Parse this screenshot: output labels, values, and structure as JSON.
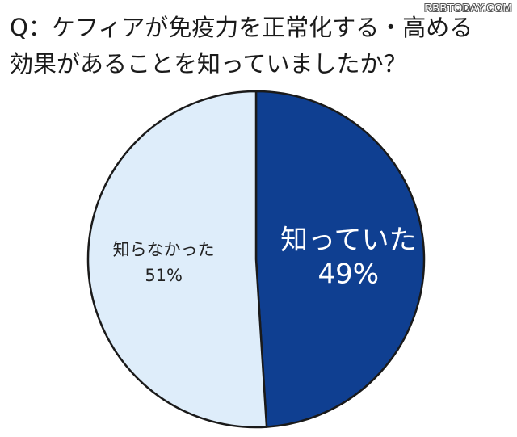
{
  "watermark": "RBBTODAY.COM",
  "question": {
    "line1": "Q：ケフィアが免疫力を正常化する・高める",
    "line2": "効果があることを知っていましたか？"
  },
  "chart_data": {
    "type": "pie",
    "title": "Q：ケフィアが免疫力を正常化する・高める効果があることを知っていましたか？",
    "slices": [
      {
        "label": "知っていた",
        "value": 49,
        "value_label": "49%",
        "color": "#0f3f91",
        "text_color": "#ffffff"
      },
      {
        "label": "知らなかった",
        "value": 51,
        "value_label": "51%",
        "color": "#deedfa",
        "text_color": "#222222"
      }
    ],
    "start": "top",
    "direction": "clockwise",
    "legend": "none"
  }
}
